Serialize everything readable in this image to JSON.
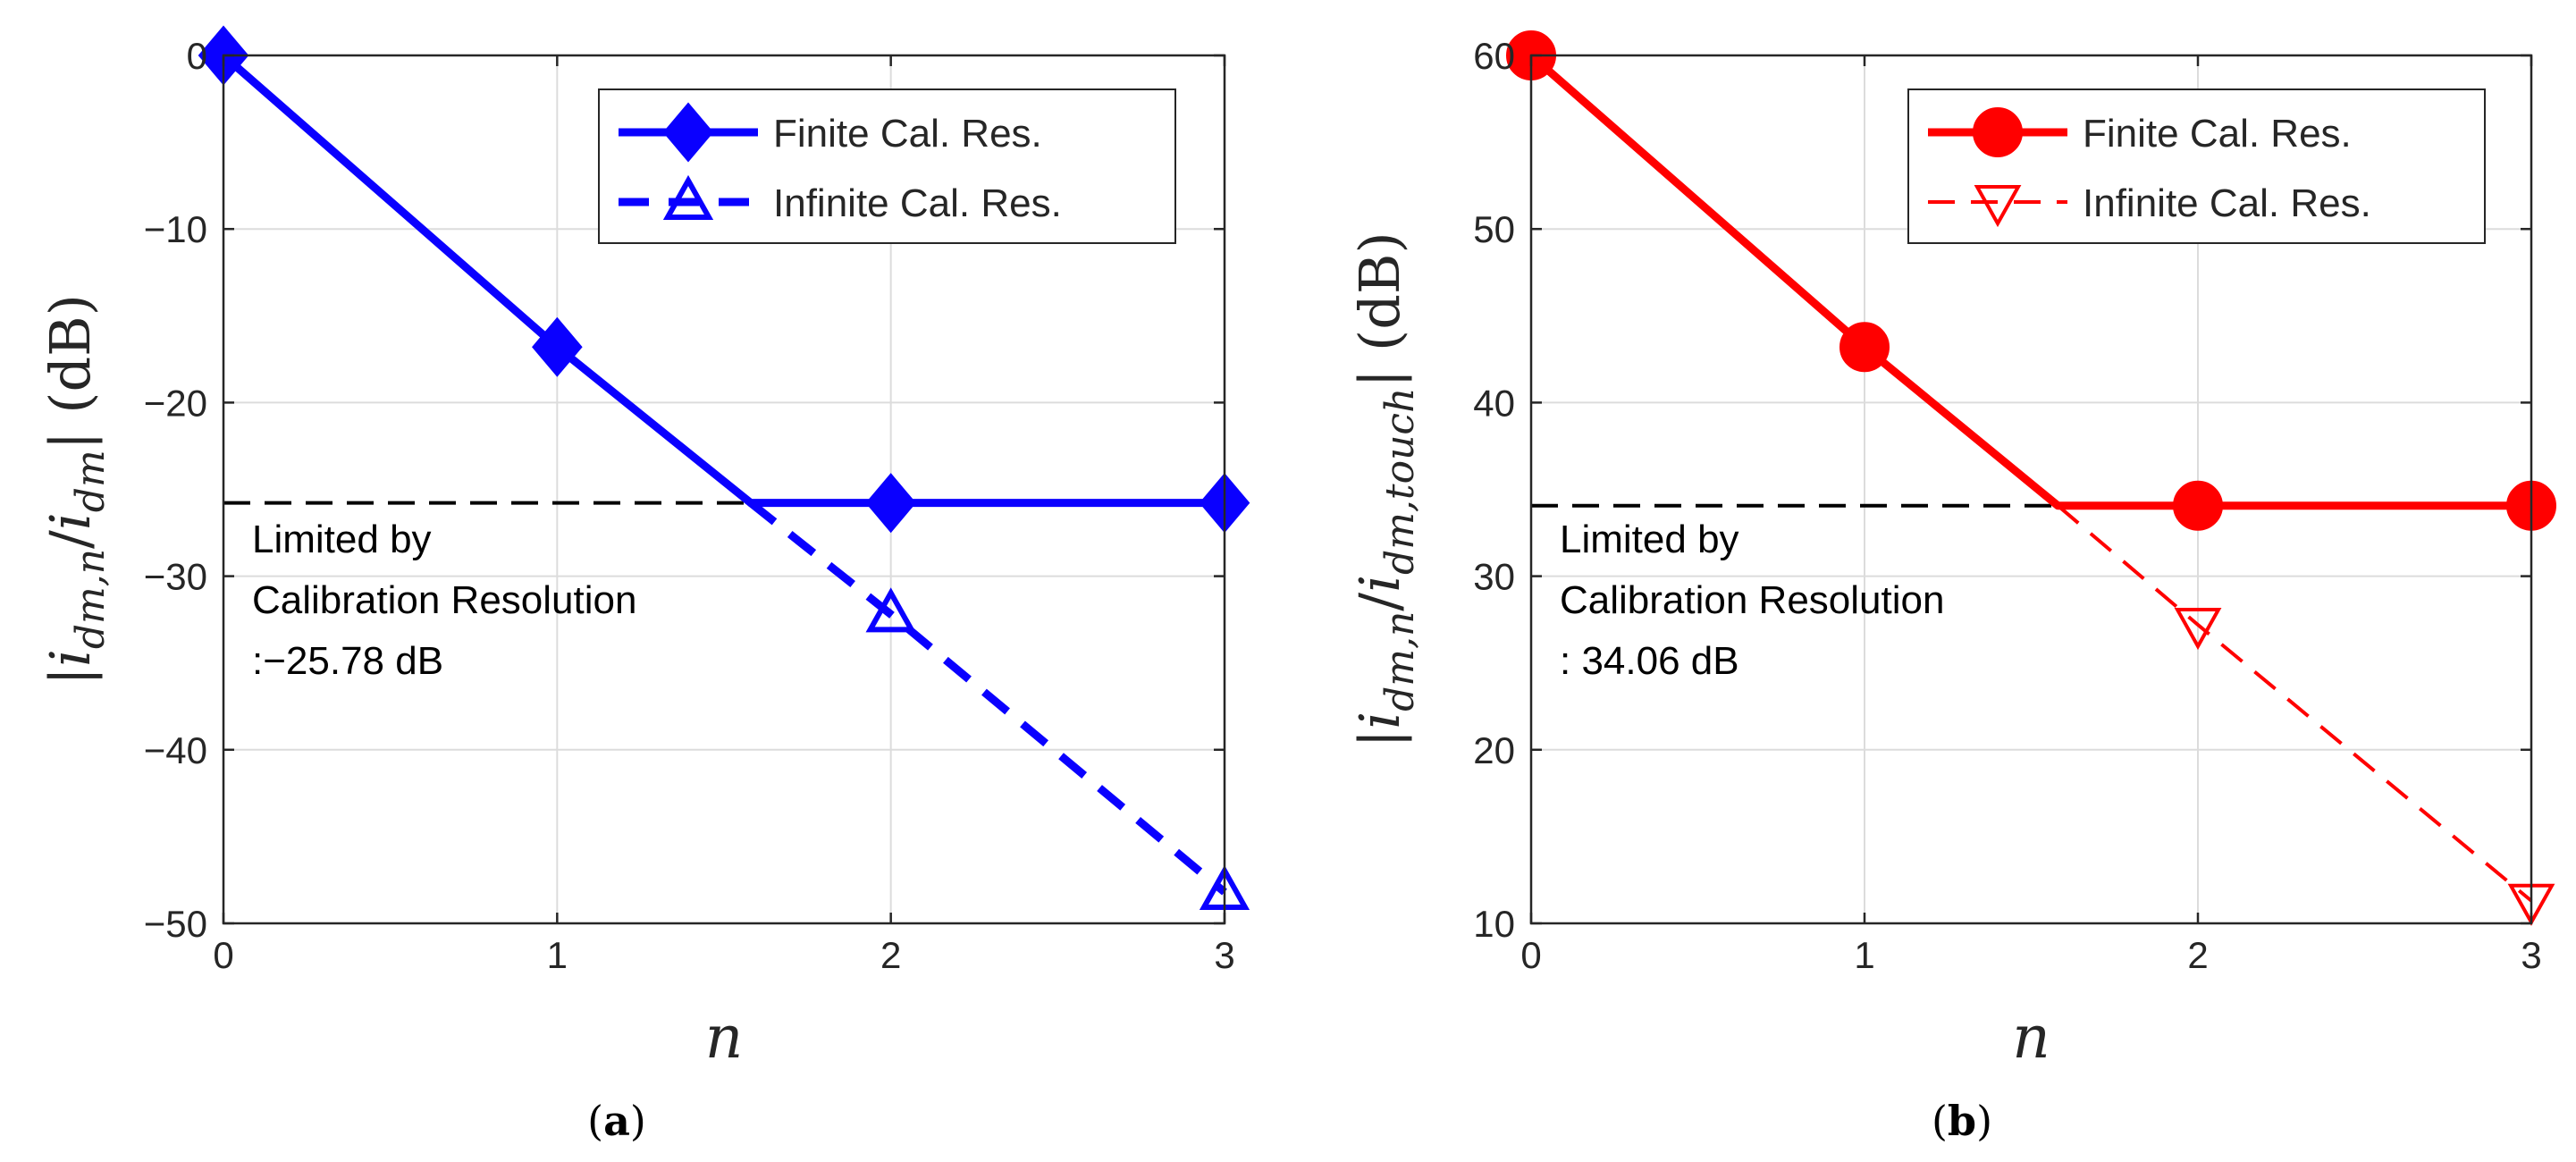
{
  "chart_data": [
    {
      "type": "line",
      "panel_label": "a",
      "xlabel": "n",
      "ylabel": "|i_{dm,n}/i_{dm}| (dB)",
      "xlim": [
        0,
        3
      ],
      "ylim": [
        -50,
        0
      ],
      "xticks": [
        0,
        1,
        2,
        3
      ],
      "yticks": [
        0,
        -10,
        -20,
        -30,
        -40,
        -50
      ],
      "grid": true,
      "legend_position": "top-right",
      "colors": {
        "series": "#0a00ff",
        "threshold": "#000000"
      },
      "series": [
        {
          "name": "Finite Cal. Res.",
          "line": "solid",
          "marker": "diamond",
          "x": [
            0,
            1,
            1.58,
            2,
            3
          ],
          "y": [
            0,
            -16.8,
            -25.78,
            -25.78,
            -25.78
          ],
          "marker_x": [
            0,
            1,
            2,
            3
          ],
          "marker_y": [
            0,
            -16.8,
            -25.78,
            -25.78
          ]
        },
        {
          "name": "Infinite Cal. Res.",
          "line": "dashed",
          "marker": "triangle-up",
          "x": [
            1.58,
            2,
            3
          ],
          "y": [
            -25.78,
            -32.2,
            -48.2
          ],
          "marker_x": [
            2,
            3
          ],
          "marker_y": [
            -32.2,
            -48.2
          ]
        }
      ],
      "threshold": {
        "y": -25.78,
        "x_range": [
          0,
          1.58
        ]
      },
      "annotation": [
        "Limited by",
        "Calibration Resolution",
        ":−25.78 dB"
      ]
    },
    {
      "type": "line",
      "panel_label": "b",
      "xlabel": "n",
      "ylabel": "|i_{dm,n}/i_{dm,touch}| (dB)",
      "xlim": [
        0,
        3
      ],
      "ylim": [
        10,
        60
      ],
      "xticks": [
        0,
        1,
        2,
        3
      ],
      "yticks": [
        60,
        50,
        40,
        30,
        20,
        10
      ],
      "grid": true,
      "legend_position": "top-right",
      "colors": {
        "series": "#ff0000",
        "threshold": "#000000"
      },
      "series": [
        {
          "name": "Finite Cal. Res.",
          "line": "solid",
          "marker": "circle",
          "x": [
            0,
            1,
            1.58,
            2,
            3
          ],
          "y": [
            60,
            43.2,
            34.06,
            34.06,
            34.06
          ],
          "marker_x": [
            0,
            1,
            2,
            3
          ],
          "marker_y": [
            60,
            43.2,
            34.06,
            34.06
          ]
        },
        {
          "name": "Infinite Cal. Res.",
          "line": "dashed",
          "marker": "triangle-down",
          "x": [
            1.58,
            2,
            3
          ],
          "y": [
            34.06,
            27.2,
            11.3
          ],
          "marker_x": [
            2,
            3
          ],
          "marker_y": [
            27.2,
            11.3
          ]
        }
      ],
      "threshold": {
        "y": 34.06,
        "x_range": [
          0,
          1.58
        ]
      },
      "annotation": [
        "Limited by",
        "Calibration Resolution",
        ": 34.06 dB"
      ]
    }
  ]
}
